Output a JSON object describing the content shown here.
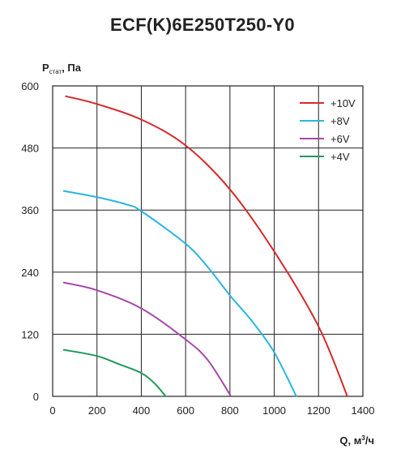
{
  "chart_data": {
    "type": "line",
    "title": "ECF(K)6E250T250-Y0",
    "ylabel": {
      "main": "P",
      "sub": "стат",
      "unit": ", Па"
    },
    "xlabel": {
      "main": "Q, м",
      "sup": "3",
      "unit": "/ч"
    },
    "xlim": [
      0,
      1400
    ],
    "ylim": [
      0,
      600
    ],
    "x_ticks": [
      0,
      200,
      400,
      600,
      800,
      1000,
      1200,
      1400
    ],
    "y_ticks": [
      0,
      120,
      240,
      360,
      480,
      600
    ],
    "grid": true,
    "legend_position": "top-right",
    "series": [
      {
        "name": "+10V",
        "color": "#d42a2a",
        "points": [
          [
            60,
            580
          ],
          [
            200,
            565
          ],
          [
            400,
            535
          ],
          [
            600,
            485
          ],
          [
            800,
            400
          ],
          [
            1000,
            280
          ],
          [
            1200,
            135
          ],
          [
            1330,
            0
          ]
        ]
      },
      {
        "name": "+8V",
        "color": "#2bb5e0",
        "points": [
          [
            50,
            397
          ],
          [
            200,
            385
          ],
          [
            340,
            370
          ],
          [
            400,
            358
          ],
          [
            600,
            295
          ],
          [
            700,
            250
          ],
          [
            800,
            195
          ],
          [
            900,
            145
          ],
          [
            1000,
            85
          ],
          [
            1100,
            0
          ]
        ]
      },
      {
        "name": "+6V",
        "color": "#a64aa8",
        "points": [
          [
            50,
            220
          ],
          [
            200,
            205
          ],
          [
            400,
            170
          ],
          [
            600,
            110
          ],
          [
            700,
            70
          ],
          [
            805,
            0
          ]
        ]
      },
      {
        "name": "+4V",
        "color": "#1f9a5a",
        "points": [
          [
            50,
            90
          ],
          [
            200,
            78
          ],
          [
            300,
            62
          ],
          [
            400,
            45
          ],
          [
            460,
            25
          ],
          [
            510,
            0
          ]
        ]
      }
    ]
  }
}
